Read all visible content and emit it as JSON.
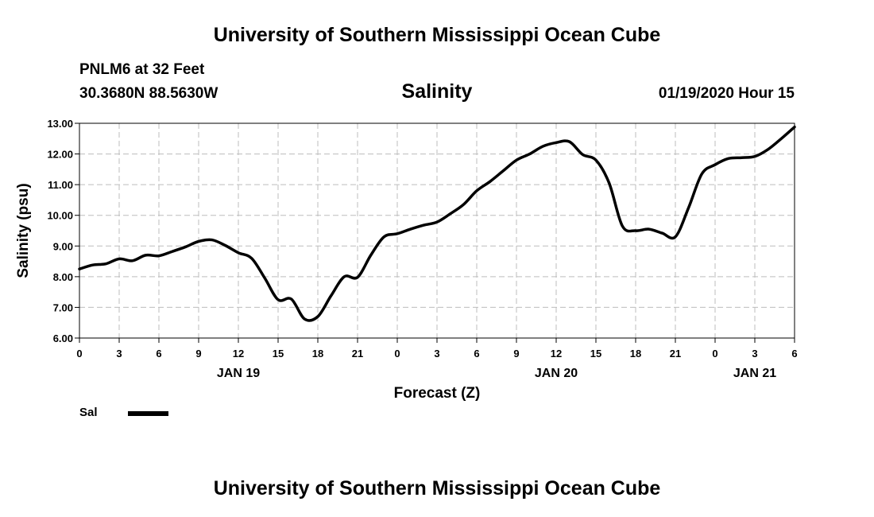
{
  "header": {
    "title": "University of Southern Mississippi Ocean Cube",
    "station": "PNLM6 at 32 Feet",
    "coordinates": "30.3680N 88.5630W",
    "timestamp": "01/19/2020 Hour 15",
    "footer_title": "University of Southern Mississippi Ocean Cube"
  },
  "chart_data": {
    "type": "line",
    "title": "Salinity",
    "xlabel": "Forecast (Z)",
    "ylabel": "Salinity (psu)",
    "ylim": [
      6.0,
      13.0
    ],
    "y_ticks": [
      "6.00",
      "7.00",
      "8.00",
      "9.00",
      "10.00",
      "11.00",
      "12.00",
      "13.00"
    ],
    "xlim": [
      0,
      54
    ],
    "x_unit": "hours since 00Z Jan 19",
    "x_ticks": [
      {
        "x": 0,
        "label": "0"
      },
      {
        "x": 3,
        "label": "3"
      },
      {
        "x": 6,
        "label": "6"
      },
      {
        "x": 9,
        "label": "9"
      },
      {
        "x": 12,
        "label": "12"
      },
      {
        "x": 15,
        "label": "15"
      },
      {
        "x": 18,
        "label": "18"
      },
      {
        "x": 21,
        "label": "21"
      },
      {
        "x": 24,
        "label": "0"
      },
      {
        "x": 27,
        "label": "3"
      },
      {
        "x": 30,
        "label": "6"
      },
      {
        "x": 33,
        "label": "9"
      },
      {
        "x": 36,
        "label": "12"
      },
      {
        "x": 39,
        "label": "15"
      },
      {
        "x": 42,
        "label": "18"
      },
      {
        "x": 45,
        "label": "21"
      },
      {
        "x": 48,
        "label": "0"
      },
      {
        "x": 51,
        "label": "3"
      },
      {
        "x": 54,
        "label": "6"
      }
    ],
    "date_labels": [
      {
        "x": 12,
        "label": "JAN 19"
      },
      {
        "x": 36,
        "label": "JAN 20"
      },
      {
        "x": 51,
        "label": "JAN 21"
      }
    ],
    "grid": true,
    "legend": "bottom-left",
    "series": [
      {
        "name": "Sal",
        "color": "#000000",
        "x": [
          0,
          1,
          2,
          3,
          4,
          5,
          6,
          7,
          8,
          9,
          10,
          11,
          12,
          13,
          14,
          15,
          16,
          17,
          18,
          19,
          20,
          21,
          22,
          23,
          24,
          25,
          26,
          27,
          28,
          29,
          30,
          31,
          32,
          33,
          34,
          35,
          36,
          37,
          38,
          39,
          40,
          41,
          42,
          43,
          44,
          45,
          46,
          47,
          48,
          49,
          50,
          51,
          52,
          53,
          54
        ],
        "values": [
          8.25,
          8.38,
          8.42,
          8.58,
          8.52,
          8.7,
          8.68,
          8.82,
          8.97,
          9.15,
          9.2,
          9.02,
          8.78,
          8.6,
          7.95,
          7.25,
          7.27,
          6.62,
          6.7,
          7.38,
          8.0,
          7.98,
          8.7,
          9.3,
          9.4,
          9.55,
          9.68,
          9.78,
          10.05,
          10.35,
          10.8,
          11.1,
          11.45,
          11.8,
          12.0,
          12.25,
          12.37,
          12.4,
          11.98,
          11.8,
          11.05,
          9.65,
          9.5,
          9.55,
          9.42,
          9.3,
          10.25,
          11.35,
          11.65,
          11.85,
          11.88,
          11.92,
          12.15,
          12.5,
          12.88
        ]
      }
    ]
  }
}
